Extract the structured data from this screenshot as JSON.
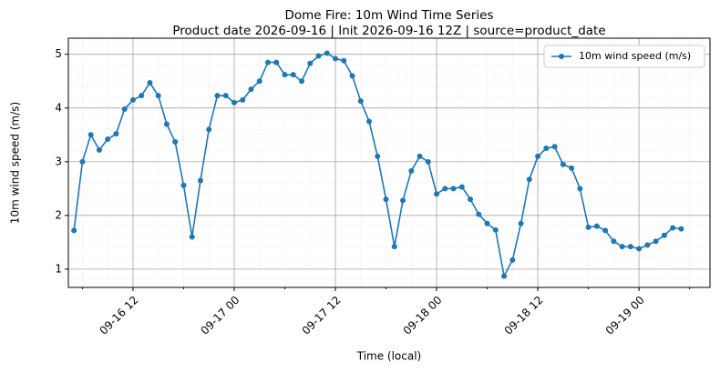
{
  "chart_data": {
    "type": "line",
    "title": "Dome Fire: 10m Wind Time Series",
    "subtitle": "Product date 2026-09-16 | Init 2026-09-16 12Z | source=product_date",
    "x_label": "Time (local)",
    "y_label": "10m wind speed (m/s)",
    "x": [
      "09-16 05",
      "09-16 06",
      "09-16 07",
      "09-16 08",
      "09-16 09",
      "09-16 10",
      "09-16 11",
      "09-16 12",
      "09-16 13",
      "09-16 14",
      "09-16 15",
      "09-16 16",
      "09-16 17",
      "09-16 18",
      "09-16 19",
      "09-16 20",
      "09-16 21",
      "09-16 22",
      "09-16 23",
      "09-17 00",
      "09-17 01",
      "09-17 02",
      "09-17 03",
      "09-17 04",
      "09-17 05",
      "09-17 06",
      "09-17 07",
      "09-17 08",
      "09-17 09",
      "09-17 10",
      "09-17 11",
      "09-17 12",
      "09-17 13",
      "09-17 14",
      "09-17 15",
      "09-17 16",
      "09-17 17",
      "09-17 18",
      "09-17 19",
      "09-17 20",
      "09-17 21",
      "09-17 22",
      "09-17 23",
      "09-18 00",
      "09-18 01",
      "09-18 02",
      "09-18 03",
      "09-18 04",
      "09-18 05",
      "09-18 06",
      "09-18 07",
      "09-18 08",
      "09-18 09",
      "09-18 10",
      "09-18 11",
      "09-18 12",
      "09-18 13",
      "09-18 14",
      "09-18 15",
      "09-18 16",
      "09-18 17",
      "09-18 18",
      "09-18 19",
      "09-18 20",
      "09-18 21",
      "09-18 22",
      "09-18 23",
      "09-19 00",
      "09-19 01",
      "09-19 02",
      "09-19 03",
      "09-19 04",
      "09-19 05"
    ],
    "series": [
      {
        "name": "10m wind speed (m/s)",
        "color": "#1f77b4",
        "values": [
          1.72,
          3.0,
          3.5,
          3.22,
          3.42,
          3.52,
          3.98,
          4.15,
          4.23,
          4.47,
          4.23,
          3.7,
          3.37,
          2.56,
          1.6,
          2.65,
          3.6,
          4.23,
          4.23,
          4.1,
          4.15,
          4.35,
          4.5,
          4.85,
          4.85,
          4.62,
          4.62,
          4.5,
          4.83,
          4.97,
          5.02,
          4.92,
          4.88,
          4.6,
          4.13,
          3.75,
          3.1,
          2.3,
          1.42,
          2.28,
          2.83,
          3.1,
          3.0,
          2.4,
          2.5,
          2.5,
          2.53,
          2.3,
          2.02,
          1.85,
          1.73,
          0.87,
          1.17,
          1.85,
          2.67,
          3.1,
          3.25,
          3.28,
          2.95,
          2.88,
          2.5,
          1.78,
          1.8,
          1.72,
          1.52,
          1.42,
          1.42,
          1.38,
          1.45,
          1.52,
          1.63,
          1.77,
          1.75
        ]
      }
    ],
    "xlim": [
      "09-16 04:20",
      "09-19 08:25"
    ],
    "xticks": [
      "09-16 12",
      "09-17 00",
      "09-17 12",
      "09-18 00",
      "09-18 12",
      "09-19 00"
    ],
    "ylim": [
      0.66,
      5.3
    ],
    "yticks": [
      1,
      2,
      3,
      4,
      5
    ],
    "grid": true,
    "legend": "upper right"
  }
}
